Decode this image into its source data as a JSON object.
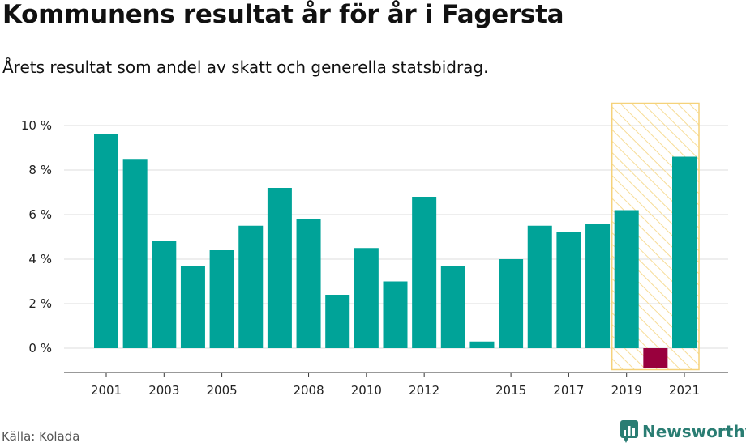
{
  "title": "Kommunens resultat år för år i Fagersta",
  "subtitle": "Årets resultat som andel av skatt och generella statsbidrag.",
  "source": "Källa: Kolada",
  "brand": "Newsworthy",
  "colors": {
    "bar": "#00a398",
    "negative": "#99003d",
    "highlight_stroke": "#f5d27a",
    "highlight_hatch": "#f7dc96",
    "grid": "#dddddd",
    "axis": "#333333",
    "brand": "#2a7d73"
  },
  "chart_data": {
    "type": "bar",
    "categories": [
      "2001",
      "2002",
      "2003",
      "2004",
      "2005",
      "2006",
      "2007",
      "2008",
      "2009",
      "2010",
      "2011",
      "2012",
      "2013",
      "2014",
      "2015",
      "2016",
      "2017",
      "2018",
      "2019",
      "2020",
      "2021"
    ],
    "values": [
      9.6,
      8.5,
      4.8,
      3.7,
      4.4,
      5.5,
      7.2,
      5.8,
      2.4,
      4.5,
      3.0,
      6.8,
      3.7,
      0.3,
      4.0,
      5.5,
      5.2,
      5.6,
      6.2,
      -0.9,
      8.6
    ],
    "x_tick_labels": [
      "2001",
      "2003",
      "2005",
      "2008",
      "2010",
      "2012",
      "2015",
      "2017",
      "2019",
      "2021"
    ],
    "y_ticks": [
      0,
      2,
      4,
      6,
      8,
      10
    ],
    "y_tick_labels": [
      "0 %",
      "2 %",
      "4 %",
      "6 %",
      "8 %",
      "10 %"
    ],
    "ylim": [
      -1,
      11
    ],
    "highlight_categories": [
      "2019",
      "2020",
      "2021"
    ],
    "grid": true,
    "legend": "none"
  }
}
